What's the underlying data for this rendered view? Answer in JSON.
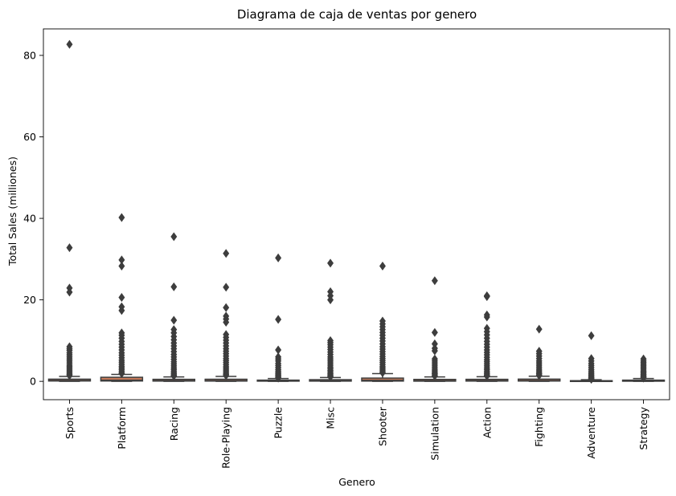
{
  "chart_data": {
    "type": "box",
    "title": "Diagrama de caja de ventas por genero",
    "xlabel": "Genero",
    "ylabel": "Total Sales (milliones)",
    "ylim": [
      -4.5,
      86.5
    ],
    "yticks": [
      0,
      20,
      40,
      60,
      80
    ],
    "grid": false,
    "legend": "none",
    "colors": {
      "box_fill": "#c47a5a",
      "box_edge": "#3d3d3d",
      "flier": "#3d3d3d"
    },
    "categories": [
      "Sports",
      "Platform",
      "Racing",
      "Role-Playing",
      "Puzzle",
      "Misc",
      "Shooter",
      "Simulation",
      "Action",
      "Fighting",
      "Adventure",
      "Strategy"
    ],
    "boxes": [
      {
        "category": "Sports",
        "q1": 0.09,
        "median": 0.22,
        "q3": 0.54,
        "whisker_low": 0.01,
        "whisker_high": 1.2,
        "outliers": [
          82.7,
          32.8,
          22.9,
          21.9,
          8.5,
          8.0,
          7.6,
          7.0,
          6.5,
          6.0,
          5.5,
          5.0,
          4.5,
          4.0,
          3.6,
          3.2,
          2.8,
          2.4,
          2.0,
          1.7,
          1.4
        ]
      },
      {
        "category": "Platform",
        "q1": 0.09,
        "median": 0.28,
        "q3": 1.0,
        "whisker_low": 0.01,
        "whisker_high": 1.7,
        "outliers": [
          40.2,
          29.8,
          28.3,
          20.6,
          18.3,
          17.4,
          11.9,
          11.3,
          10.6,
          9.8,
          9.1,
          8.4,
          7.7,
          7.0,
          6.4,
          5.8,
          5.2,
          4.7,
          4.2,
          3.7,
          3.3,
          2.9,
          2.5,
          2.1,
          1.9
        ]
      },
      {
        "category": "Racing",
        "q1": 0.07,
        "median": 0.19,
        "q3": 0.5,
        "whisker_low": 0.01,
        "whisker_high": 1.1,
        "outliers": [
          35.5,
          23.2,
          15.0,
          12.7,
          11.9,
          11.0,
          10.2,
          9.4,
          8.7,
          8.0,
          7.3,
          6.6,
          6.0,
          5.4,
          4.8,
          4.3,
          3.8,
          3.3,
          2.9,
          2.5,
          2.1,
          1.8,
          1.5,
          1.3
        ]
      },
      {
        "category": "Role-Playing",
        "q1": 0.07,
        "median": 0.18,
        "q3": 0.52,
        "whisker_low": 0.01,
        "whisker_high": 1.2,
        "outliers": [
          31.4,
          23.1,
          18.1,
          16.0,
          15.3,
          14.5,
          11.5,
          10.8,
          10.1,
          9.4,
          8.7,
          8.0,
          7.4,
          6.8,
          6.2,
          5.6,
          5.1,
          4.6,
          4.1,
          3.6,
          3.2,
          2.8,
          2.4,
          2.0,
          1.7,
          1.4
        ]
      },
      {
        "category": "Puzzle",
        "q1": 0.05,
        "median": 0.11,
        "q3": 0.3,
        "whisker_low": 0.01,
        "whisker_high": 0.7,
        "outliers": [
          30.3,
          15.2,
          7.7,
          6.0,
          5.5,
          5.0,
          4.4,
          3.9,
          3.4,
          2.9,
          2.5,
          2.1,
          1.8,
          1.5,
          1.2,
          1.0,
          0.8
        ]
      },
      {
        "category": "Misc",
        "q1": 0.06,
        "median": 0.16,
        "q3": 0.41,
        "whisker_low": 0.01,
        "whisker_high": 0.95,
        "outliers": [
          29.0,
          22.0,
          21.0,
          20.0,
          10.0,
          9.5,
          9.0,
          8.4,
          7.8,
          7.2,
          6.6,
          6.0,
          5.5,
          5.0,
          4.5,
          4.0,
          3.5,
          3.1,
          2.7,
          2.3,
          1.9,
          1.6,
          1.3,
          1.1
        ]
      },
      {
        "category": "Shooter",
        "q1": 0.07,
        "median": 0.24,
        "q3": 0.8,
        "whisker_low": 0.01,
        "whisker_high": 1.9,
        "outliers": [
          28.3,
          14.8,
          14.1,
          13.4,
          12.7,
          12.0,
          11.3,
          10.6,
          9.9,
          9.2,
          8.5,
          7.9,
          7.3,
          6.7,
          6.1,
          5.6,
          5.1,
          4.6,
          4.1,
          3.6,
          3.2,
          2.8,
          2.4,
          2.1
        ]
      },
      {
        "category": "Simulation",
        "q1": 0.05,
        "median": 0.16,
        "q3": 0.48,
        "whisker_low": 0.01,
        "whisker_high": 1.1,
        "outliers": [
          24.7,
          12.0,
          9.2,
          8.1,
          7.5,
          5.5,
          5.0,
          4.5,
          4.0,
          3.5,
          3.0,
          2.6,
          2.2,
          1.9,
          1.6,
          1.3
        ]
      },
      {
        "category": "Action",
        "q1": 0.07,
        "median": 0.19,
        "q3": 0.5,
        "whisker_low": 0.01,
        "whisker_high": 1.15,
        "outliers": [
          21.0,
          20.8,
          16.3,
          15.8,
          13.0,
          12.2,
          11.4,
          10.6,
          9.8,
          9.1,
          8.4,
          7.7,
          7.1,
          6.5,
          5.9,
          5.3,
          4.8,
          4.3,
          3.8,
          3.3,
          2.9,
          2.5,
          2.1,
          1.8,
          1.5,
          1.3
        ]
      },
      {
        "category": "Fighting",
        "q1": 0.08,
        "median": 0.21,
        "q3": 0.55,
        "whisker_low": 0.01,
        "whisker_high": 1.25,
        "outliers": [
          12.8,
          7.4,
          6.8,
          6.2,
          5.6,
          5.0,
          4.5,
          4.0,
          3.5,
          3.0,
          2.6,
          2.2,
          1.9,
          1.6,
          1.4
        ]
      },
      {
        "category": "Adventure",
        "q1": 0.02,
        "median": 0.06,
        "q3": 0.17,
        "whisker_low": 0.01,
        "whisker_high": 0.4,
        "outliers": [
          11.2,
          5.6,
          5.0,
          4.4,
          3.9,
          3.4,
          2.9,
          2.5,
          2.1,
          1.8,
          1.5,
          1.2,
          1.0,
          0.8,
          0.6,
          0.5
        ]
      },
      {
        "category": "Strategy",
        "q1": 0.04,
        "median": 0.11,
        "q3": 0.3,
        "whisker_low": 0.01,
        "whisker_high": 0.7,
        "outliers": [
          5.5,
          5.0,
          4.6,
          4.2,
          3.8,
          3.4,
          3.0,
          2.6,
          2.3,
          2.0,
          1.7,
          1.4,
          1.2,
          1.0,
          0.8
        ]
      }
    ]
  }
}
